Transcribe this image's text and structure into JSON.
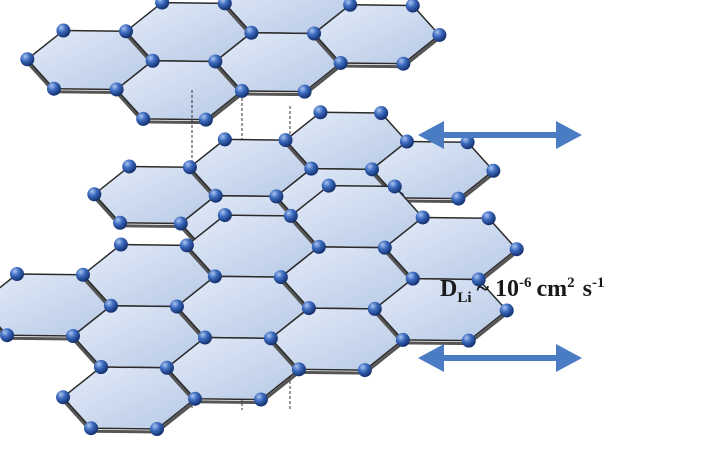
{
  "diffusion_label": {
    "symbol": "D",
    "subscript": "Li",
    "approx": "~ 10",
    "exponent": "-6",
    "unit": "cm",
    "unit_exponent": "2",
    "time_unit": "s",
    "time_exponent": "-1"
  }
}
